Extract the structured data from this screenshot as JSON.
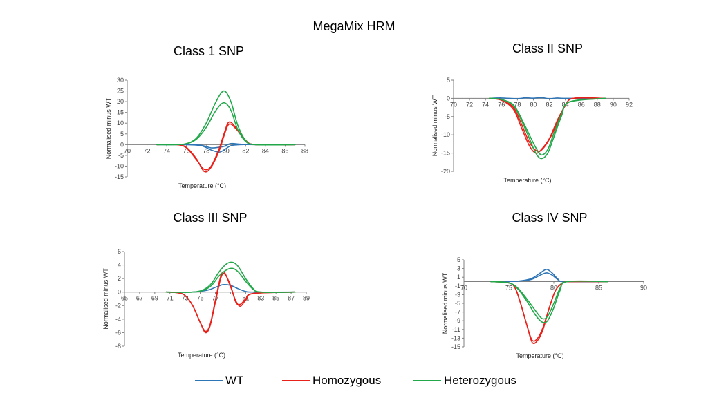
{
  "title": "MegaMix HRM",
  "colors": {
    "WT": "#2E75B6",
    "Homozygous": "#E8221A",
    "Heterozygous": "#22A84A"
  },
  "legend": [
    {
      "label": "WT",
      "color": "#2E75B6"
    },
    {
      "label": "Homozygous",
      "color": "#E8221A"
    },
    {
      "label": "Heterozygous",
      "color": "#22A84A"
    }
  ],
  "chart_data": [
    {
      "type": "line",
      "title": "Class 1 SNP",
      "xlabel": "Temperature (°C)",
      "ylabel": "Normalised minus WT",
      "xlim": [
        70,
        88
      ],
      "ylim": [
        -15,
        30
      ],
      "xticks": [
        70,
        72,
        74,
        76,
        78,
        80,
        82,
        84,
        86,
        88
      ],
      "yticks": [
        -15,
        -10,
        -5,
        0,
        5,
        10,
        15,
        20,
        25,
        30
      ],
      "grid": false,
      "series": [
        {
          "name": "WT",
          "color": "#2E75B6",
          "x": [
            73,
            76,
            77.5,
            78.5,
            79.3,
            79.8,
            80.5,
            81.5,
            83,
            87
          ],
          "y": [
            0,
            0,
            -0.5,
            -2.5,
            -3.5,
            -2.5,
            -0.5,
            0,
            0,
            0
          ]
        },
        {
          "name": "WT",
          "color": "#2E75B6",
          "x": [
            73,
            76,
            77.5,
            78.5,
            79.3,
            79.8,
            80.5,
            81.5,
            83,
            87
          ],
          "y": [
            0,
            0,
            -0.3,
            -1.5,
            -1.2,
            -0.8,
            0.5,
            0.2,
            0,
            0
          ]
        },
        {
          "name": "Homozygous",
          "color": "#E8221A",
          "x": [
            73,
            75,
            76,
            77,
            77.8,
            78.5,
            79.3,
            79.8,
            80.3,
            81,
            82,
            83,
            87
          ],
          "y": [
            0,
            0,
            -1.5,
            -7,
            -11.5,
            -10,
            -2,
            5,
            10.5,
            8,
            2,
            0,
            0
          ]
        },
        {
          "name": "Homozygous",
          "color": "#E8221A",
          "x": [
            73,
            75,
            76,
            77,
            77.8,
            78.5,
            79.3,
            79.8,
            80.3,
            81,
            82,
            83,
            87
          ],
          "y": [
            0,
            0,
            -1.3,
            -6.5,
            -12.5,
            -10.5,
            -3,
            4,
            9.5,
            7.5,
            2,
            0,
            0
          ]
        },
        {
          "name": "Heterozygous",
          "color": "#22A84A",
          "x": [
            73,
            75,
            76,
            77,
            78,
            79,
            79.8,
            80.5,
            81.2,
            82,
            83,
            87
          ],
          "y": [
            0,
            0,
            0.5,
            3,
            10,
            20,
            25,
            20,
            9,
            2,
            0,
            0
          ]
        },
        {
          "name": "Heterozygous",
          "color": "#22A84A",
          "x": [
            73,
            75,
            76,
            77,
            78,
            79,
            79.8,
            80.5,
            81.2,
            82,
            83,
            87
          ],
          "y": [
            0,
            0,
            0.4,
            2.5,
            8,
            16,
            19.5,
            16,
            7,
            1.5,
            0,
            0
          ]
        }
      ]
    },
    {
      "type": "line",
      "title": "Class II SNP",
      "xlabel": "Temperature (°C)",
      "ylabel": "Normalised minus WT",
      "xlim": [
        70,
        92
      ],
      "ylim": [
        -20,
        5
      ],
      "xticks": [
        70,
        72,
        74,
        76,
        78,
        80,
        82,
        84,
        86,
        88,
        90,
        92
      ],
      "yticks": [
        -20,
        -15,
        -10,
        -5,
        0,
        5
      ],
      "grid": false,
      "series": [
        {
          "name": "WT",
          "color": "#2E75B6",
          "x": [
            74.5,
            76,
            78,
            79,
            80,
            81,
            82,
            83,
            84,
            89
          ],
          "y": [
            0,
            0.1,
            -0.1,
            0.15,
            0.05,
            0.2,
            -0.1,
            0.1,
            0,
            0
          ]
        },
        {
          "name": "Homozygous",
          "color": "#E8221A",
          "x": [
            74.5,
            76,
            77.5,
            78.5,
            79.5,
            80.3,
            81,
            82,
            83,
            84,
            85,
            89
          ],
          "y": [
            0,
            -0.5,
            -3,
            -8,
            -13,
            -15,
            -14,
            -11,
            -6,
            -2,
            0,
            0
          ]
        },
        {
          "name": "Homozygous",
          "color": "#E8221A",
          "x": [
            74.5,
            76,
            77.5,
            78.5,
            79.5,
            80.5,
            81.3,
            82.3,
            83.2,
            84,
            85,
            89
          ],
          "y": [
            0,
            -0.5,
            -2.5,
            -7,
            -12,
            -14.5,
            -13.5,
            -10,
            -5.5,
            -2,
            0,
            0
          ]
        },
        {
          "name": "Heterozygous",
          "color": "#22A84A",
          "x": [
            74.5,
            76,
            77.5,
            78.5,
            79.5,
            80.3,
            81,
            81.8,
            82.5,
            83.5,
            84.5,
            89
          ],
          "y": [
            0,
            -0.3,
            -2,
            -6,
            -11,
            -15,
            -16.5,
            -15,
            -11,
            -5,
            -1,
            0
          ]
        },
        {
          "name": "Heterozygous",
          "color": "#22A84A",
          "x": [
            74.5,
            76,
            77.5,
            78.5,
            79.5,
            80.3,
            81,
            81.8,
            82.5,
            83.5,
            84.5,
            89
          ],
          "y": [
            0,
            -0.3,
            -1.8,
            -5.5,
            -10,
            -13.5,
            -15.5,
            -14,
            -10,
            -4.5,
            -1,
            0
          ]
        }
      ]
    },
    {
      "type": "line",
      "title": "Class III SNP",
      "xlabel": "Temperature (°C)",
      "ylabel": "Normalised minus WT",
      "xlim": [
        65,
        89
      ],
      "ylim": [
        -8,
        6
      ],
      "xticks": [
        65,
        67,
        69,
        71,
        73,
        75,
        77,
        79,
        81,
        83,
        85,
        87,
        89
      ],
      "xticklabels": [
        "65",
        "67",
        "69",
        "71",
        "73",
        "75",
        "77",
        "",
        "81",
        "83",
        "85",
        "87",
        "89"
      ],
      "yticks": [
        -8,
        -6,
        -4,
        -2,
        0,
        2,
        4,
        6
      ],
      "grid": false,
      "series": [
        {
          "name": "WT",
          "color": "#2E75B6",
          "x": [
            70.5,
            74,
            76,
            77,
            78,
            79,
            80,
            81,
            82,
            87.5
          ],
          "y": [
            0,
            0,
            0.3,
            0.7,
            1.1,
            1.0,
            0.5,
            0.1,
            0,
            0
          ]
        },
        {
          "name": "Homozygous",
          "color": "#E8221A",
          "x": [
            70.5,
            72,
            73,
            74,
            75,
            75.7,
            76.3,
            77,
            77.7,
            78.2,
            79,
            79.7,
            80.3,
            81,
            82,
            87.5
          ],
          "y": [
            0,
            -0.1,
            -0.5,
            -2,
            -4.5,
            -6,
            -5,
            -1.5,
            2,
            2.7,
            1,
            -1.5,
            -1.8,
            -1,
            -0.2,
            0
          ]
        },
        {
          "name": "Homozygous",
          "color": "#E8221A",
          "x": [
            70.5,
            72,
            73,
            74,
            75,
            75.7,
            76.3,
            77,
            77.7,
            78.2,
            79,
            79.7,
            80.3,
            81,
            82,
            87.5
          ],
          "y": [
            0,
            -0.1,
            -0.5,
            -2,
            -4.5,
            -5.8,
            -4.8,
            -1.2,
            2.3,
            2.9,
            0.8,
            -1.3,
            -2.1,
            -1.2,
            -0.2,
            0
          ]
        },
        {
          "name": "Heterozygous",
          "color": "#22A84A",
          "x": [
            70.5,
            74,
            75.5,
            76.5,
            77.5,
            78.5,
            79.3,
            80,
            81,
            82,
            83,
            87.5
          ],
          "y": [
            0,
            0,
            0.4,
            1.3,
            3,
            4.2,
            4.4,
            3.8,
            2,
            0.5,
            0,
            0
          ]
        },
        {
          "name": "Heterozygous",
          "color": "#22A84A",
          "x": [
            70.5,
            74,
            75.5,
            76.5,
            77.5,
            78.5,
            79.3,
            80,
            81,
            82,
            83,
            87.5
          ],
          "y": [
            0,
            0,
            0.3,
            1,
            2.4,
            3.3,
            3.5,
            3,
            1.6,
            0.4,
            0,
            0
          ]
        }
      ]
    },
    {
      "type": "line",
      "title": "Class IV SNP",
      "xlabel": "Temperature (°C)",
      "ylabel": "Normalised minus WT",
      "xlim": [
        70,
        90
      ],
      "ylim": [
        -15,
        5
      ],
      "xticks": [
        70,
        75,
        80,
        85,
        90
      ],
      "yticks": [
        -15,
        -13,
        -11,
        -9,
        -7,
        -5,
        -3,
        -1,
        1,
        3,
        5
      ],
      "grid": false,
      "series": [
        {
          "name": "WT",
          "color": "#2E75B6",
          "x": [
            73,
            76,
            77.5,
            78.5,
            79.2,
            79.8,
            80.5,
            81.2,
            86
          ],
          "y": [
            0,
            0.1,
            0.7,
            2,
            2.8,
            2,
            0.5,
            0,
            0
          ]
        },
        {
          "name": "WT",
          "color": "#2E75B6",
          "x": [
            73,
            76,
            77.5,
            78.5,
            79.2,
            79.8,
            80.5,
            81.2,
            86
          ],
          "y": [
            0,
            0.1,
            0.5,
            1.5,
            2,
            1.5,
            0.4,
            0,
            0
          ]
        },
        {
          "name": "Homozygous",
          "color": "#E8221A",
          "x": [
            73,
            75,
            75.7,
            76.3,
            77,
            77.6,
            78.2,
            78.8,
            79.5,
            80.2,
            81,
            82,
            86
          ],
          "y": [
            0,
            -0.3,
            -1.5,
            -5,
            -10,
            -14,
            -13.5,
            -11,
            -6,
            -2,
            -0.3,
            0,
            0
          ]
        },
        {
          "name": "Homozygous",
          "color": "#E8221A",
          "x": [
            73,
            75,
            75.7,
            76.3,
            77,
            77.6,
            78.2,
            78.8,
            79.5,
            80.2,
            81,
            82,
            86
          ],
          "y": [
            0,
            -0.3,
            -1.5,
            -5,
            -10,
            -13.5,
            -13,
            -10.5,
            -6,
            -2,
            -0.3,
            0,
            0
          ]
        },
        {
          "name": "Heterozygous",
          "color": "#22A84A",
          "x": [
            73,
            75,
            76,
            77,
            78,
            78.7,
            79.3,
            80,
            80.7,
            81.5,
            86
          ],
          "y": [
            0,
            -0.3,
            -1.5,
            -4,
            -6.8,
            -8.5,
            -8,
            -5,
            -1.5,
            0,
            0
          ]
        },
        {
          "name": "Heterozygous",
          "color": "#22A84A",
          "x": [
            73,
            75,
            76,
            77,
            78,
            78.7,
            79.3,
            80,
            80.7,
            81.5,
            86
          ],
          "y": [
            0,
            -0.3,
            -1.7,
            -4.5,
            -7.8,
            -9.3,
            -9,
            -6,
            -2,
            0,
            0
          ]
        }
      ]
    }
  ]
}
